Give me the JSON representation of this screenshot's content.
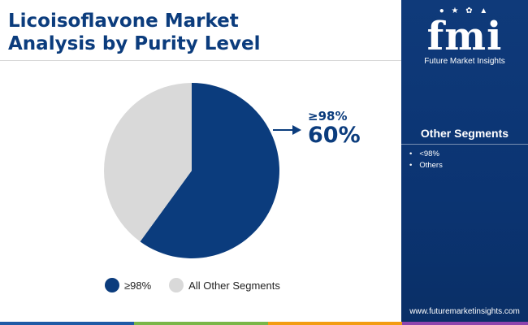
{
  "header": {
    "title_line1": "Licoisoflavone Market",
    "title_line2": "Analysis by Purity Level"
  },
  "chart_data": {
    "type": "pie",
    "title": "Licoisoflavone Market Analysis by Purity Level",
    "slices": [
      {
        "label": "≥98%",
        "value": 60,
        "color": "#0b3c7d"
      },
      {
        "label": "All Other Segments",
        "value": 40,
        "color": "#d9d9d9"
      }
    ],
    "legend_placement": "bottom",
    "annotation": {
      "label": "≥98%",
      "value": "60%"
    }
  },
  "sidebar": {
    "logo_text": "fmi",
    "logo_subtitle": "Future Market Insights",
    "segments_title": "Other Segments",
    "segments": [
      "<98%",
      "Others"
    ],
    "website": "www.futuremarketinsights.com"
  },
  "colors": {
    "brand": "#0b3c7d",
    "sidebar_bg": "#0f3a7a",
    "bottom_bar": [
      "#1f5aa6",
      "#7ab648",
      "#f39c12",
      "#8e44ad"
    ]
  }
}
